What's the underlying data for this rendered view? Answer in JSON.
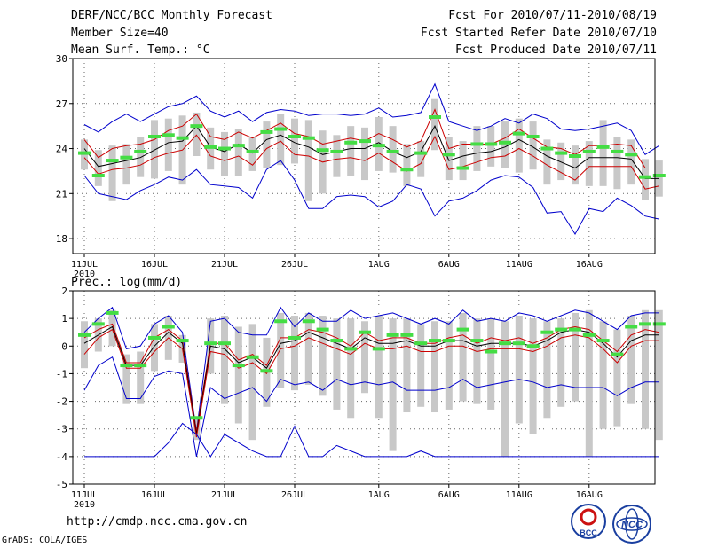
{
  "header": {
    "title": "DERF/NCC/BCC Monthly Forecast",
    "member": "Member Size=40",
    "variable_top": "Mean Surf. Temp.: °C",
    "period": "Fcst For 2010/07/11-2010/08/19",
    "started": "Fcst Started Refer Date 2010/07/10",
    "produced": "Fcst Produced Date 2010/07/11"
  },
  "footer": {
    "url": "http://cmdp.ncc.cma.gov.cn",
    "grads": "GrADS: COLA/IGES",
    "logo_left_text": "BCC",
    "logo_right_text": "NCC"
  },
  "colors": {
    "envelope": "#0000cc",
    "spread": "#cc0000",
    "mean": "#000000",
    "box": "#c8c8c8",
    "obs": "#44dd44"
  },
  "chart_data": [
    {
      "type": "line",
      "title": "Mean Surf. Temp.: °C",
      "x_ticks": [
        "11JUL",
        "16JUL",
        "21JUL",
        "26JUL",
        "1AUG",
        "6AUG",
        "11AUG",
        "16AUG"
      ],
      "x_tick_days": [
        1,
        6,
        11,
        16,
        22,
        27,
        32,
        37
      ],
      "x_year_label": "2010",
      "ylim": [
        17,
        30
      ],
      "yticks": [
        18,
        21,
        24,
        27,
        30
      ],
      "series": [
        {
          "name": "max",
          "values": [
            25.6,
            25.1,
            25.8,
            26.3,
            25.8,
            26.3,
            26.8,
            27.0,
            27.5,
            26.5,
            26.1,
            26.5,
            25.8,
            26.4,
            26.6,
            26.5,
            26.2,
            26.3,
            26.3,
            26.2,
            26.3,
            26.7,
            26.1,
            26.2,
            26.4,
            28.3,
            25.8,
            25.5,
            25.2,
            25.5,
            26.0,
            25.7,
            26.3,
            26.0,
            25.3,
            25.2,
            25.3,
            25.5,
            25.7,
            25.2,
            23.6,
            24.2
          ]
        },
        {
          "name": "upper",
          "values": [
            24.6,
            23.4,
            24.0,
            24.2,
            24.3,
            24.6,
            25.2,
            25.5,
            26.3,
            24.8,
            24.6,
            25.1,
            24.7,
            25.2,
            25.7,
            25.0,
            24.8,
            24.3,
            24.5,
            24.7,
            24.5,
            25.0,
            24.6,
            24.1,
            24.5,
            26.6,
            24.0,
            24.3,
            24.3,
            24.3,
            24.7,
            25.3,
            24.7,
            24.1,
            24.0,
            23.6,
            24.2,
            24.2,
            24.3,
            24.2,
            22.7,
            22.7
          ]
        },
        {
          "name": "mean",
          "values": [
            24.0,
            22.8,
            23.0,
            23.2,
            23.4,
            23.9,
            24.4,
            24.5,
            25.5,
            24.1,
            23.8,
            24.3,
            23.7,
            24.6,
            24.9,
            24.4,
            24.1,
            23.6,
            23.8,
            24.0,
            24.0,
            24.4,
            23.8,
            23.4,
            23.8,
            25.5,
            23.2,
            23.5,
            23.7,
            23.8,
            24.1,
            24.6,
            24.1,
            23.5,
            23.1,
            22.7,
            23.4,
            23.4,
            23.4,
            23.3,
            22.0,
            22.0
          ]
        },
        {
          "name": "lower",
          "values": [
            23.4,
            22.3,
            22.6,
            22.7,
            22.9,
            23.4,
            23.7,
            23.9,
            24.9,
            23.5,
            23.2,
            23.5,
            22.9,
            24.0,
            24.5,
            23.6,
            23.5,
            23.1,
            23.3,
            23.4,
            23.2,
            23.7,
            23.1,
            22.5,
            23.0,
            24.8,
            22.6,
            22.8,
            23.1,
            23.4,
            23.5,
            24.0,
            23.5,
            22.9,
            22.4,
            21.9,
            22.8,
            22.8,
            22.8,
            22.8,
            21.3,
            21.5
          ]
        },
        {
          "name": "min",
          "values": [
            22.2,
            21.0,
            20.8,
            20.6,
            21.2,
            21.6,
            22.1,
            21.9,
            22.6,
            21.6,
            21.5,
            21.4,
            20.7,
            22.6,
            23.2,
            21.9,
            20.0,
            20.0,
            20.8,
            20.9,
            20.8,
            20.1,
            20.5,
            21.6,
            21.3,
            19.5,
            20.5,
            20.7,
            21.2,
            21.9,
            22.2,
            22.1,
            21.4,
            19.7,
            19.8,
            18.3,
            20.0,
            19.8,
            20.7,
            20.2,
            19.5,
            19.3
          ]
        },
        {
          "name": "obs",
          "values": [
            23.7,
            22.2,
            23.2,
            23.4,
            23.8,
            24.8,
            24.9,
            24.7,
            25.5,
            24.1,
            24.0,
            24.2,
            23.8,
            25.1,
            25.3,
            24.8,
            24.7,
            23.9,
            23.8,
            24.4,
            24.5,
            24.2,
            23.8,
            22.6,
            23.7,
            26.1,
            23.6,
            22.7,
            24.3,
            24.3,
            24.4,
            25.0,
            24.8,
            24.0,
            23.7,
            23.5,
            23.8,
            24.1,
            23.8,
            23.6,
            22.1,
            22.2
          ]
        }
      ],
      "box_top": [
        24.6,
        23.9,
        24.2,
        24.3,
        24.8,
        25.9,
        26.0,
        26.2,
        26.4,
        25.4,
        25.1,
        25.3,
        24.8,
        25.8,
        26.3,
        26.0,
        25.9,
        25.2,
        24.9,
        25.5,
        25.4,
        26.1,
        25.5,
        24.3,
        24.5,
        27.3,
        24.8,
        24.5,
        25.5,
        25.5,
        25.8,
        26.0,
        25.8,
        24.6,
        24.4,
        24.2,
        24.5,
        25.9,
        24.8,
        24.6,
        23.3,
        23.2
      ],
      "box_bottom": [
        22.6,
        21.5,
        20.5,
        21.6,
        22.1,
        22.0,
        22.5,
        21.6,
        23.5,
        22.6,
        22.2,
        22.2,
        22.5,
        22.7,
        22.9,
        23.0,
        20.5,
        21.0,
        22.1,
        22.2,
        21.9,
        22.5,
        22.4,
        21.5,
        22.1,
        23.9,
        21.9,
        21.9,
        22.5,
        22.8,
        22.7,
        22.4,
        22.6,
        21.6,
        21.9,
        21.6,
        21.5,
        21.5,
        21.3,
        21.6,
        20.6,
        20.8
      ]
    },
    {
      "type": "line",
      "title": "Prec.: log(mm/d)",
      "x_ticks": [
        "11JUL",
        "16JUL",
        "21JUL",
        "26JUL",
        "1AUG",
        "6AUG",
        "11AUG",
        "16AUG"
      ],
      "x_tick_days": [
        1,
        6,
        11,
        16,
        22,
        27,
        32,
        37
      ],
      "x_year_label": "2010",
      "ylim": [
        -5,
        2
      ],
      "yticks": [
        -5,
        -4,
        -3,
        -2,
        -1,
        0,
        1,
        2
      ],
      "series": [
        {
          "name": "max",
          "values": [
            0.5,
            1.0,
            1.4,
            -0.1,
            0.0,
            0.8,
            1.1,
            0.5,
            -3.1,
            0.9,
            1.0,
            0.5,
            0.4,
            0.4,
            1.4,
            0.7,
            1.2,
            0.9,
            0.9,
            1.3,
            1.0,
            1.1,
            1.2,
            1.0,
            0.8,
            1.0,
            0.8,
            1.3,
            0.9,
            1.0,
            0.9,
            1.2,
            1.1,
            0.9,
            1.1,
            1.3,
            1.2,
            0.9,
            0.6,
            1.1,
            1.2,
            1.2
          ]
        },
        {
          "name": "upper",
          "values": [
            0.3,
            0.6,
            0.8,
            -0.6,
            -0.6,
            0.3,
            0.6,
            0.2,
            -3.1,
            0.1,
            0.1,
            -0.5,
            -0.3,
            -0.7,
            0.3,
            0.3,
            0.6,
            0.5,
            0.3,
            0.0,
            0.5,
            0.2,
            0.3,
            0.3,
            0.1,
            0.1,
            0.3,
            0.4,
            0.1,
            0.3,
            0.2,
            0.3,
            0.1,
            0.3,
            0.6,
            0.7,
            0.6,
            0.2,
            -0.2,
            0.4,
            0.6,
            0.5
          ]
        },
        {
          "name": "mean",
          "values": [
            0.1,
            0.4,
            0.7,
            -0.7,
            -0.7,
            0.0,
            0.5,
            0.1,
            -3.2,
            0.0,
            -0.1,
            -0.6,
            -0.4,
            -0.8,
            0.1,
            0.2,
            0.5,
            0.3,
            0.1,
            -0.1,
            0.3,
            0.1,
            0.1,
            0.2,
            0.0,
            0.0,
            0.2,
            0.2,
            0.0,
            0.1,
            0.1,
            0.1,
            0.0,
            0.2,
            0.5,
            0.6,
            0.5,
            0.1,
            -0.4,
            0.2,
            0.4,
            0.4
          ]
        },
        {
          "name": "lower",
          "values": [
            -0.3,
            0.3,
            0.6,
            -0.8,
            -0.8,
            -0.2,
            0.3,
            -0.1,
            -3.3,
            -0.2,
            -0.3,
            -0.8,
            -0.6,
            -1.0,
            -0.1,
            0.0,
            0.3,
            0.1,
            -0.1,
            -0.3,
            0.1,
            -0.1,
            -0.1,
            0.0,
            -0.2,
            -0.2,
            0.0,
            0.0,
            -0.2,
            -0.1,
            -0.1,
            -0.1,
            -0.2,
            0.0,
            0.3,
            0.4,
            0.3,
            -0.1,
            -0.6,
            0.0,
            0.2,
            0.2
          ]
        },
        {
          "name": "min",
          "values": [
            -1.6,
            -0.7,
            -0.4,
            -1.9,
            -1.9,
            -1.1,
            -0.9,
            -1.0,
            -4.0,
            -1.5,
            -1.9,
            -1.7,
            -1.5,
            -2.0,
            -1.2,
            -1.4,
            -1.3,
            -1.6,
            -1.2,
            -1.4,
            -1.3,
            -1.4,
            -1.3,
            -1.6,
            -1.6,
            -1.6,
            -1.5,
            -1.2,
            -1.5,
            -1.4,
            -1.3,
            -1.2,
            -1.3,
            -1.5,
            -1.4,
            -1.5,
            -1.5,
            -1.5,
            -1.8,
            -1.5,
            -1.3,
            -1.3
          ]
        },
        {
          "name": "min_env",
          "values": [
            -4.0,
            -4.0,
            -4.0,
            -4.0,
            -4.0,
            -4.0,
            -3.5,
            -2.8,
            -3.2,
            -4.0,
            -3.2,
            -3.5,
            -3.8,
            -4.0,
            -4.0,
            -2.9,
            -4.0,
            -4.0,
            -3.6,
            -3.8,
            -4.0,
            -4.0,
            -4.0,
            -4.0,
            -3.8,
            -4.0,
            -4.0,
            -4.0,
            -4.0,
            -4.0,
            -4.0,
            -4.0,
            -4.0,
            -4.0,
            -4.0,
            -4.0,
            -4.0,
            -4.0,
            -4.0,
            -4.0,
            -4.0,
            -4.0
          ]
        },
        {
          "name": "obs",
          "values": [
            0.4,
            0.8,
            1.2,
            -0.7,
            -0.7,
            0.3,
            0.7,
            0.2,
            -2.6,
            0.1,
            0.1,
            -0.7,
            -0.4,
            -0.9,
            0.9,
            0.3,
            0.9,
            0.6,
            0.2,
            -0.1,
            0.5,
            -0.1,
            0.4,
            0.4,
            0.1,
            0.2,
            0.2,
            0.6,
            0.2,
            -0.2,
            0.1,
            0.1,
            0.0,
            0.5,
            0.6,
            0.6,
            0.4,
            0.2,
            -0.3,
            0.7,
            0.8,
            0.8
          ]
        }
      ],
      "box_top": [
        0.9,
        1.0,
        1.3,
        -0.3,
        -0.2,
        0.8,
        1.1,
        0.4,
        -2.6,
        1.0,
        1.1,
        0.7,
        0.8,
        0.3,
        1.2,
        1.1,
        1.2,
        1.1,
        1.0,
        1.0,
        0.9,
        1.1,
        1.0,
        1.0,
        0.8,
        0.9,
        0.9,
        1.2,
        1.0,
        1.0,
        0.9,
        1.1,
        1.0,
        0.9,
        1.0,
        1.2,
        1.3,
        0.9,
        0.6,
        1.1,
        1.3,
        1.3
      ],
      "box_bottom": [
        -0.8,
        -0.2,
        0.0,
        -2.1,
        -2.1,
        -0.9,
        -0.5,
        -0.6,
        -3.4,
        -1.0,
        -2.1,
        -2.8,
        -3.4,
        -2.2,
        -1.5,
        -1.6,
        -1.4,
        -1.8,
        -2.3,
        -2.6,
        -1.7,
        -2.6,
        -3.8,
        -2.4,
        -2.2,
        -2.4,
        -2.3,
        -2.0,
        -2.1,
        -2.3,
        -4.0,
        -2.8,
        -3.2,
        -2.6,
        -2.2,
        -2.0,
        -4.0,
        -3.0,
        -2.9,
        -2.1,
        -3.0,
        -3.4
      ]
    }
  ]
}
